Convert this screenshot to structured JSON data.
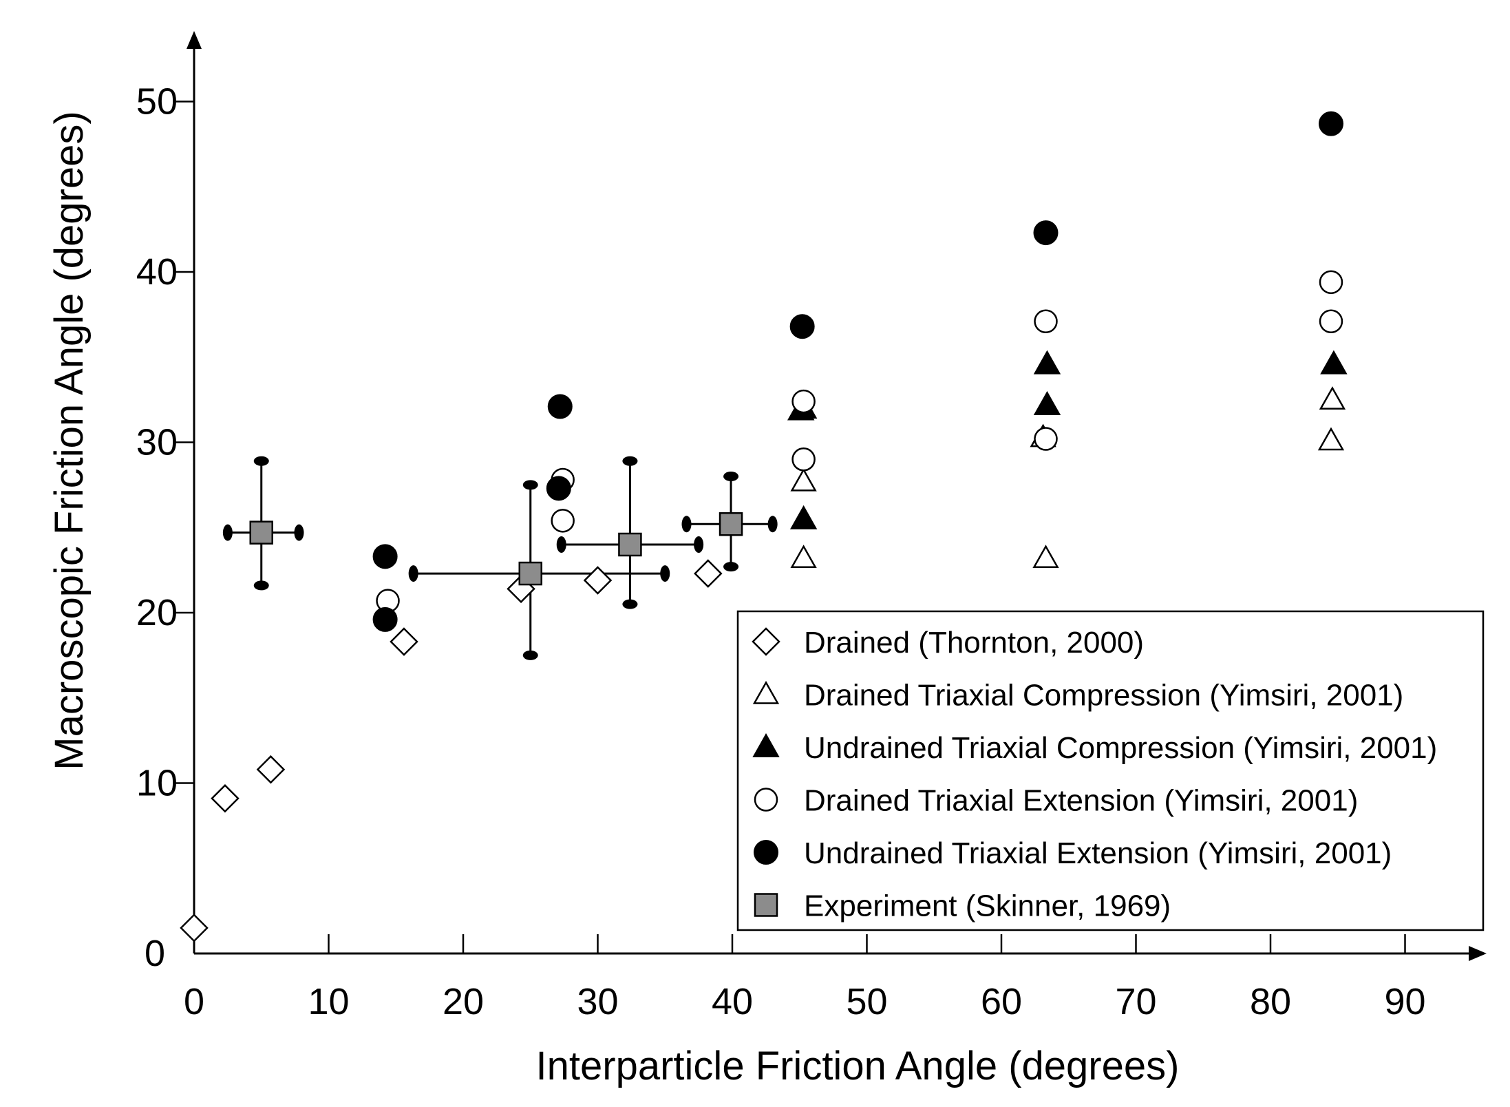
{
  "chart_data": {
    "type": "scatter",
    "xlabel": "Interparticle Friction Angle (degrees)",
    "ylabel": "Macroscopic Friction Angle (degrees)",
    "xlim": [
      0,
      95
    ],
    "ylim": [
      0,
      55
    ],
    "x_ticks": [
      "0",
      "10",
      "20",
      "30",
      "40",
      "50",
      "60",
      "70",
      "80",
      "90"
    ],
    "y_ticks": [
      "0",
      "10",
      "20",
      "30",
      "40",
      "50"
    ],
    "grid": false,
    "legend_position": "bottom-right",
    "series": [
      {
        "name": "Drained (Thornton, 2000)",
        "marker": "diamond-open",
        "points": [
          [
            0,
            1.5
          ],
          [
            2.3,
            9.1
          ],
          [
            5.7,
            10.8
          ],
          [
            15.6,
            18.3
          ],
          [
            24.3,
            21.4
          ],
          [
            30,
            21.9
          ],
          [
            38.2,
            22.3
          ]
        ]
      },
      {
        "name": "Drained Triaxial Compression (Yimsiri, 2001)",
        "marker": "triangle-open",
        "points": [
          [
            45.3,
            23.2
          ],
          [
            45.3,
            27.7
          ],
          [
            63.3,
            23.2
          ],
          [
            63.1,
            30.3
          ],
          [
            84.5,
            30.1
          ],
          [
            84.6,
            32.5
          ]
        ]
      },
      {
        "name": "Undrained Triaxial Compression (Yimsiri, 2001)",
        "marker": "triangle-filled",
        "points": [
          [
            45.3,
            25.5
          ],
          [
            45.1,
            31.9
          ],
          [
            45.3,
            32.0
          ],
          [
            63.4,
            32.2
          ],
          [
            63.4,
            34.6
          ],
          [
            84.7,
            34.6
          ]
        ]
      },
      {
        "name": "Drained Triaxial Extension (Yimsiri, 2001)",
        "marker": "circle-open",
        "points": [
          [
            14.4,
            20.7
          ],
          [
            27.4,
            25.4
          ],
          [
            27.4,
            27.8
          ],
          [
            45.3,
            29.0
          ],
          [
            45.3,
            32.4
          ],
          [
            63.3,
            30.2
          ],
          [
            63.3,
            37.1
          ],
          [
            84.5,
            37.1
          ],
          [
            84.5,
            39.4
          ]
        ]
      },
      {
        "name": "Undrained Triaxial Extension (Yimsiri, 2001)",
        "marker": "circle-filled",
        "points": [
          [
            14.2,
            19.6
          ],
          [
            14.2,
            23.3
          ],
          [
            27.1,
            27.3
          ],
          [
            27.2,
            32.1
          ],
          [
            45.2,
            36.8
          ],
          [
            63.3,
            42.3
          ],
          [
            84.5,
            48.7
          ]
        ]
      },
      {
        "name": "Experiment (Skinner, 1969)",
        "marker": "square-gray",
        "points": [
          {
            "x": 5.0,
            "y": 24.7,
            "xmin": 2.5,
            "xmax": 7.8,
            "ymin": 21.6,
            "ymax": 28.9
          },
          {
            "x": 25.0,
            "y": 22.3,
            "xmin": 16.3,
            "xmax": 35.0,
            "ymin": 17.5,
            "ymax": 27.5
          },
          {
            "x": 32.4,
            "y": 24.0,
            "xmin": 27.3,
            "xmax": 37.5,
            "ymin": 20.5,
            "ymax": 28.9
          },
          {
            "x": 39.9,
            "y": 25.2,
            "xmin": 36.6,
            "xmax": 43.0,
            "ymin": 22.7,
            "ymax": 28.0
          }
        ]
      }
    ]
  }
}
